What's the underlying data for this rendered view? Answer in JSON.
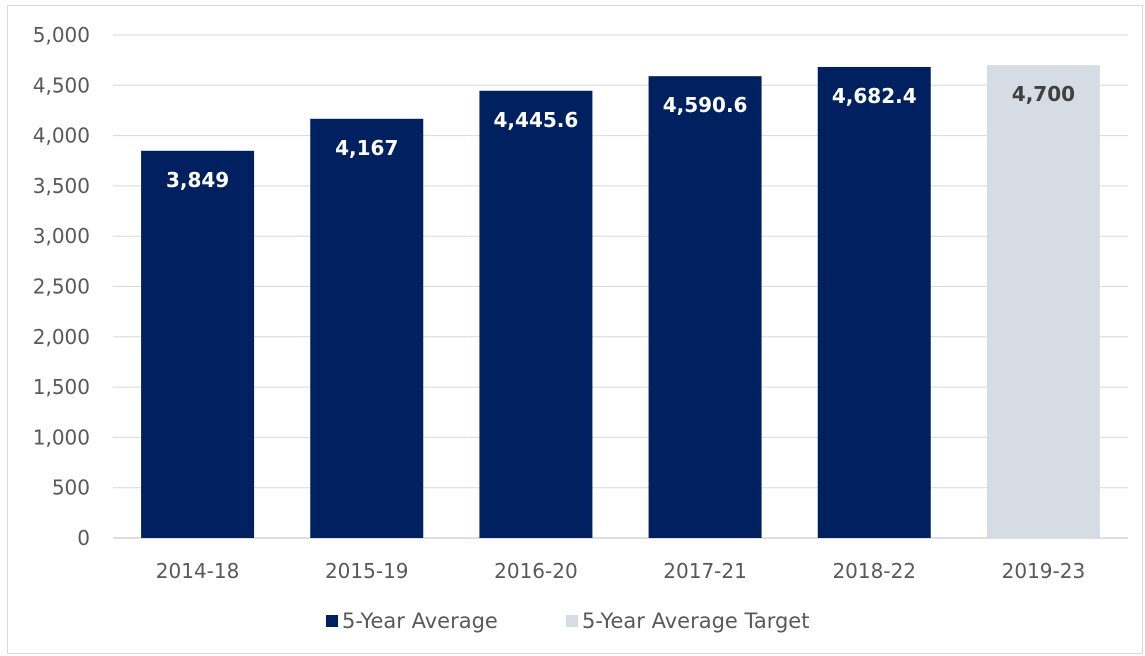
{
  "chart_data": {
    "type": "bar",
    "title": "",
    "xlabel": "",
    "ylabel": "",
    "ylim": [
      0,
      5000
    ],
    "ytick_step": 500,
    "ytick_labels": [
      "0",
      "500",
      "1,000",
      "1,500",
      "2,000",
      "2,500",
      "3,000",
      "3,500",
      "4,000",
      "4,500",
      "5,000"
    ],
    "grid": true,
    "legend_position": "bottom",
    "categories": [
      "2014-18",
      "2015-19",
      "2016-20",
      "2017-21",
      "2018-22",
      "2019-23"
    ],
    "series": [
      {
        "name": "5-Year Average",
        "color": "#002060",
        "label_color": "#ffffff",
        "values": [
          3849,
          4167,
          4445.6,
          4590.6,
          4682.4,
          null
        ],
        "labels": [
          "3,849",
          "4,167",
          "4,445.6",
          "4,590.6",
          "4,682.4",
          ""
        ]
      },
      {
        "name": "5-Year Average Target",
        "color": "#d6dce4",
        "label_color": "#404040",
        "values": [
          null,
          null,
          null,
          null,
          null,
          4700
        ],
        "labels": [
          "",
          "",
          "",
          "",
          "",
          "4,700"
        ]
      }
    ]
  }
}
